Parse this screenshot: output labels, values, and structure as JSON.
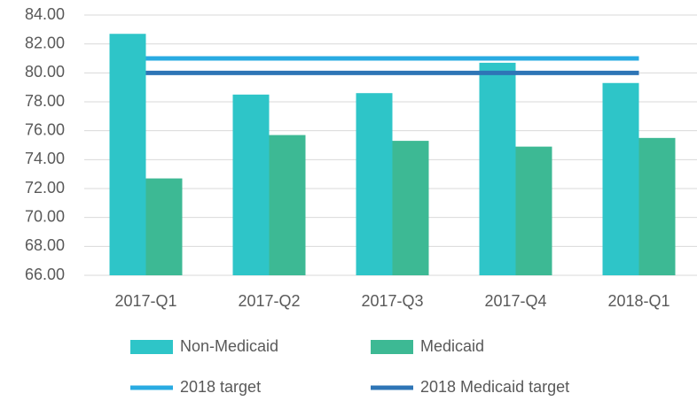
{
  "chart_data": {
    "type": "bar",
    "categories": [
      "2017-Q1",
      "2017-Q2",
      "2017-Q3",
      "2017-Q4",
      "2018-Q1"
    ],
    "series": [
      {
        "name": "Non-Medicaid",
        "type": "bar",
        "color": "#2ec5c8",
        "values": [
          82.7,
          78.5,
          78.6,
          80.7,
          79.3
        ]
      },
      {
        "name": "Medicaid",
        "type": "bar",
        "color": "#3db994",
        "values": [
          72.7,
          75.7,
          75.3,
          74.9,
          75.5
        ]
      },
      {
        "name": "2018 target",
        "type": "line",
        "color": "#29abe2",
        "values": [
          81,
          81,
          81,
          81,
          81
        ]
      },
      {
        "name": "2018 Medicaid target",
        "type": "line",
        "color": "#2e75b6",
        "values": [
          80,
          80,
          80,
          80,
          80
        ]
      }
    ],
    "ylim": [
      66,
      84
    ],
    "yticks": [
      {
        "value": 66,
        "label": "66.00"
      },
      {
        "value": 68,
        "label": "68.00"
      },
      {
        "value": 70,
        "label": "70.00"
      },
      {
        "value": 72,
        "label": "72.00"
      },
      {
        "value": 74,
        "label": "74.00"
      },
      {
        "value": 76,
        "label": "76.00"
      },
      {
        "value": 78,
        "label": "78.00"
      },
      {
        "value": 80,
        "label": "80.00"
      },
      {
        "value": 82,
        "label": "82.00"
      },
      {
        "value": 84,
        "label": "84.00"
      }
    ],
    "grid": true
  }
}
